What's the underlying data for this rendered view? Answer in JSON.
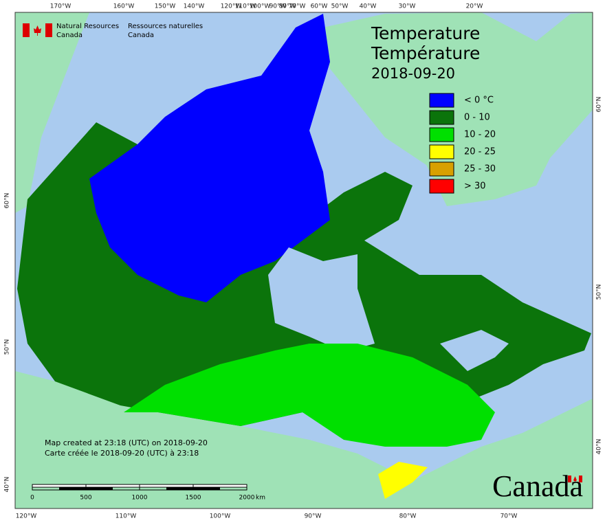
{
  "agency": {
    "en_line1": "Natural Resources",
    "en_line2": "Canada",
    "fr_line1": "Ressources naturelles",
    "fr_line2": "Canada"
  },
  "title": {
    "en": "Temperature",
    "fr": "Température",
    "date": "2018-09-20"
  },
  "legend": [
    {
      "label": "< 0 °C",
      "color": "#0000ff"
    },
    {
      "label": "0 - 10",
      "color": "#0b740b"
    },
    {
      "label": "10 - 20",
      "color": "#00e000"
    },
    {
      "label": "20 - 25",
      "color": "#ffff00"
    },
    {
      "label": "25 - 30",
      "color": "#d8a000"
    },
    {
      "label": "> 30",
      "color": "#ff0000"
    }
  ],
  "graticule": {
    "top": [
      "170°W",
      "160°W",
      "150°W",
      "140°W",
      "120°W",
      "110°W",
      "100°W",
      "90°W",
      "80°W",
      "70°W",
      "60°W",
      "50°W",
      "40°W",
      "30°W",
      "20°W"
    ],
    "bottom": [
      "120°W",
      "110°W",
      "100°W",
      "90°W",
      "80°W",
      "70°W"
    ],
    "left": [
      "60°N",
      "50°N",
      "40°N"
    ],
    "right": [
      "60°N",
      "50°N",
      "40°N"
    ]
  },
  "credits": {
    "en": "Map created at 23:18 (UTC) on 2018-09-20",
    "fr": "Carte créée le 2018-09-20 (UTC) à 23:18"
  },
  "scale_bar": {
    "labels": [
      "0",
      "500",
      "1000",
      "1500",
      "2000"
    ],
    "unit": "km"
  },
  "wordmark": "Canada"
}
